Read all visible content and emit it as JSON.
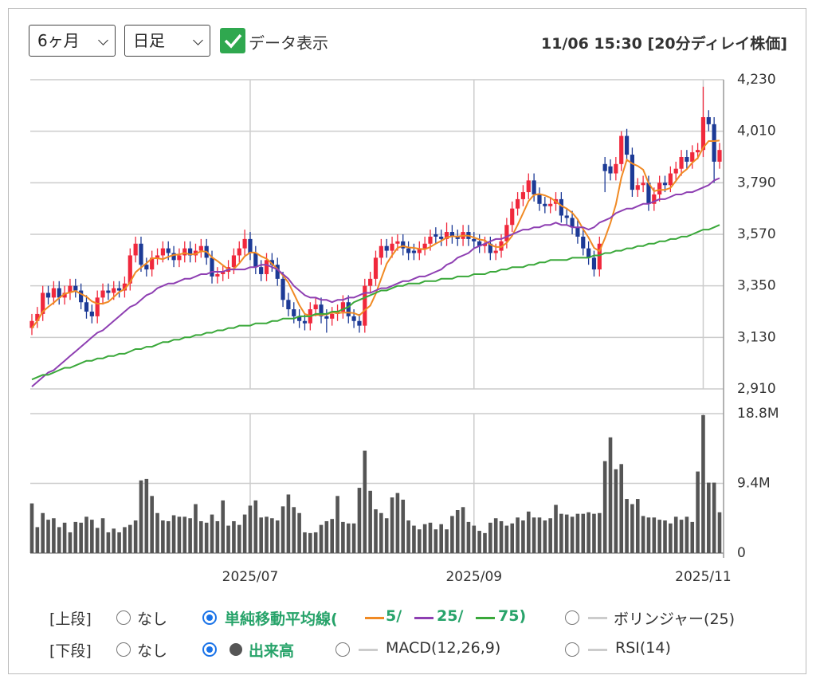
{
  "header": {
    "period": "6ヶ月",
    "interval": "日足",
    "show_data": {
      "label": "データ表示",
      "checked": true
    },
    "timestamp": "11/06 15:30 [20分ディレイ株価]"
  },
  "controls": {
    "upper": {
      "label": "[上段]",
      "options": [
        {
          "label": "なし",
          "selected": false
        },
        {
          "label": "単純移動平均線(",
          "parts": [
            "5/",
            "25/",
            "75)"
          ],
          "selected": true
        },
        {
          "label": "ボリンジャー(25)",
          "selected": false
        }
      ]
    },
    "lower": {
      "label": "[下段]",
      "options": [
        {
          "label": "なし",
          "selected": false
        },
        {
          "label": "出来高",
          "selected": true
        },
        {
          "label": "MACD(12,26,9)",
          "selected": false
        },
        {
          "label": "RSI(14)",
          "selected": false
        }
      ]
    }
  },
  "chart_data": [
    {
      "type": "candlestick",
      "up_color": "#f0283c",
      "down_color": "#1c3a96",
      "grid": true,
      "ylim": [
        2910,
        4230
      ],
      "yticks": [
        {
          "value": 2910,
          "label": "2,910"
        },
        {
          "value": 3130,
          "label": "3,130"
        },
        {
          "value": 3350,
          "label": "3,350"
        },
        {
          "value": 3570,
          "label": "3,570"
        },
        {
          "value": 3790,
          "label": "3,790"
        },
        {
          "value": 4010,
          "label": "4,010"
        },
        {
          "value": 4230,
          "label": "4,230"
        }
      ],
      "open": [
        3170,
        3200,
        3230,
        3320,
        3300,
        3340,
        3300,
        3320,
        3350,
        3330,
        3280,
        3240,
        3220,
        3300,
        3330,
        3320,
        3340,
        3330,
        3360,
        3480,
        3530,
        3440,
        3420,
        3470,
        3480,
        3510,
        3490,
        3460,
        3480,
        3510,
        3480,
        3500,
        3520,
        3470,
        3390,
        3400,
        3410,
        3430,
        3480,
        3510,
        3550,
        3490,
        3430,
        3400,
        3460,
        3440,
        3380,
        3290,
        3250,
        3220,
        3200,
        3190,
        3250,
        3270,
        3220,
        3210,
        3230,
        3240,
        3280,
        3220,
        3200,
        3180,
        3350,
        3380,
        3470,
        3520,
        3500,
        3530,
        3540,
        3510,
        3500,
        3490,
        3510,
        3530,
        3570,
        3560,
        3550,
        3580,
        3560,
        3550,
        3580,
        3550,
        3540,
        3520,
        3530,
        3490,
        3500,
        3540,
        3610,
        3680,
        3720,
        3750,
        3800,
        3740,
        3700,
        3690,
        3700,
        3720,
        3650,
        3640,
        3600,
        3560,
        3510,
        3470,
        3420,
        3870,
        3860,
        3830,
        3870,
        3990,
        3910,
        3760,
        3780,
        3790,
        3700,
        3740,
        3790,
        3780,
        3830,
        3850,
        3900,
        3880,
        3920,
        3930,
        4070,
        4040,
        3880
      ],
      "high": [
        3230,
        3260,
        3350,
        3350,
        3370,
        3370,
        3350,
        3380,
        3380,
        3360,
        3310,
        3270,
        3330,
        3360,
        3360,
        3370,
        3370,
        3390,
        3510,
        3560,
        3560,
        3470,
        3500,
        3510,
        3540,
        3540,
        3520,
        3510,
        3540,
        3540,
        3530,
        3550,
        3550,
        3500,
        3430,
        3440,
        3460,
        3510,
        3540,
        3590,
        3580,
        3520,
        3460,
        3490,
        3490,
        3470,
        3410,
        3320,
        3280,
        3250,
        3230,
        3280,
        3300,
        3300,
        3250,
        3260,
        3270,
        3310,
        3310,
        3250,
        3230,
        3380,
        3410,
        3500,
        3550,
        3550,
        3560,
        3570,
        3570,
        3540,
        3530,
        3540,
        3560,
        3590,
        3600,
        3590,
        3620,
        3610,
        3590,
        3610,
        3610,
        3580,
        3570,
        3560,
        3560,
        3530,
        3570,
        3640,
        3710,
        3750,
        3780,
        3830,
        3830,
        3770,
        3730,
        3730,
        3750,
        3750,
        3680,
        3670,
        3630,
        3590,
        3540,
        3500,
        3560,
        3900,
        3890,
        3900,
        4010,
        4020,
        3940,
        3810,
        3820,
        3820,
        3770,
        3820,
        3820,
        3860,
        3880,
        3930,
        3930,
        3950,
        3960,
        4200,
        4100,
        4070,
        3960
      ],
      "low": [
        3140,
        3170,
        3200,
        3270,
        3270,
        3270,
        3270,
        3290,
        3300,
        3250,
        3210,
        3190,
        3190,
        3270,
        3290,
        3290,
        3300,
        3300,
        3330,
        3450,
        3410,
        3390,
        3390,
        3440,
        3450,
        3460,
        3430,
        3430,
        3450,
        3450,
        3450,
        3470,
        3440,
        3360,
        3360,
        3370,
        3380,
        3400,
        3450,
        3480,
        3460,
        3400,
        3370,
        3370,
        3410,
        3350,
        3260,
        3220,
        3190,
        3170,
        3160,
        3160,
        3220,
        3190,
        3150,
        3180,
        3200,
        3210,
        3190,
        3170,
        3150,
        3150,
        3320,
        3350,
        3440,
        3470,
        3470,
        3500,
        3480,
        3460,
        3460,
        3460,
        3480,
        3500,
        3530,
        3520,
        3520,
        3530,
        3520,
        3520,
        3520,
        3510,
        3490,
        3490,
        3460,
        3460,
        3470,
        3510,
        3580,
        3650,
        3690,
        3720,
        3710,
        3670,
        3660,
        3660,
        3670,
        3620,
        3610,
        3570,
        3530,
        3480,
        3440,
        3390,
        3390,
        3750,
        3800,
        3800,
        3840,
        3880,
        3730,
        3730,
        3750,
        3670,
        3670,
        3710,
        3750,
        3750,
        3800,
        3820,
        3850,
        3850,
        3890,
        3900,
        4010,
        3790,
        3850
      ],
      "close": [
        3200,
        3230,
        3320,
        3300,
        3340,
        3300,
        3320,
        3350,
        3330,
        3280,
        3240,
        3220,
        3300,
        3330,
        3320,
        3340,
        3330,
        3360,
        3480,
        3530,
        3440,
        3420,
        3470,
        3480,
        3510,
        3490,
        3460,
        3480,
        3510,
        3480,
        3500,
        3520,
        3470,
        3390,
        3400,
        3410,
        3430,
        3480,
        3510,
        3550,
        3490,
        3430,
        3400,
        3460,
        3440,
        3380,
        3290,
        3250,
        3220,
        3200,
        3190,
        3250,
        3270,
        3220,
        3210,
        3230,
        3240,
        3280,
        3220,
        3200,
        3180,
        3350,
        3380,
        3470,
        3520,
        3500,
        3530,
        3540,
        3510,
        3490,
        3490,
        3510,
        3530,
        3560,
        3560,
        3550,
        3580,
        3560,
        3550,
        3580,
        3550,
        3540,
        3520,
        3530,
        3490,
        3500,
        3540,
        3610,
        3680,
        3720,
        3750,
        3800,
        3740,
        3700,
        3690,
        3700,
        3720,
        3650,
        3640,
        3600,
        3560,
        3510,
        3470,
        3420,
        3530,
        3840,
        3830,
        3870,
        3990,
        3910,
        3760,
        3780,
        3790,
        3700,
        3740,
        3790,
        3780,
        3830,
        3850,
        3900,
        3880,
        3920,
        3930,
        4070,
        4040,
        3880,
        3930
      ],
      "series": [
        {
          "color": "#f08a24",
          "values": [
            3170,
            3200,
            3240,
            3260,
            3278,
            3298,
            3316,
            3322,
            3328,
            3316,
            3304,
            3284,
            3274,
            3274,
            3282,
            3302,
            3324,
            3336,
            3366,
            3408,
            3428,
            3446,
            3468,
            3468,
            3464,
            3474,
            3482,
            3484,
            3490,
            3484,
            3486,
            3498,
            3496,
            3472,
            3456,
            3438,
            3420,
            3422,
            3446,
            3476,
            3492,
            3492,
            3476,
            3466,
            3444,
            3422,
            3394,
            3364,
            3316,
            3268,
            3230,
            3222,
            3226,
            3226,
            3228,
            3236,
            3234,
            3236,
            3236,
            3234,
            3224,
            3246,
            3266,
            3316,
            3380,
            3444,
            3480,
            3512,
            3520,
            3514,
            3512,
            3508,
            3506,
            3516,
            3530,
            3542,
            3556,
            3562,
            3560,
            3564,
            3564,
            3556,
            3548,
            3544,
            3526,
            3516,
            3516,
            3534,
            3564,
            3610,
            3660,
            3712,
            3738,
            3742,
            3736,
            3726,
            3710,
            3692,
            3680,
            3662,
            3634,
            3592,
            3556,
            3512,
            3498,
            3554,
            3618,
            3698,
            3812,
            3888,
            3872,
            3862,
            3846,
            3788,
            3754,
            3760,
            3760,
            3768,
            3798,
            3830,
            3848,
            3876,
            3896,
            3940,
            3968,
            3968,
            3970
          ]
        },
        {
          "color": "#8e3fb2",
          "values": [
            2920,
            2940,
            2960,
            2980,
            2990,
            3010,
            3030,
            3050,
            3070,
            3090,
            3110,
            3130,
            3150,
            3160,
            3180,
            3200,
            3220,
            3240,
            3260,
            3270,
            3290,
            3310,
            3320,
            3340,
            3350,
            3360,
            3360,
            3370,
            3380,
            3380,
            3390,
            3400,
            3400,
            3410,
            3410,
            3410,
            3420,
            3420,
            3420,
            3420,
            3430,
            3430,
            3440,
            3440,
            3430,
            3420,
            3400,
            3380,
            3350,
            3330,
            3310,
            3300,
            3300,
            3290,
            3290,
            3280,
            3290,
            3290,
            3300,
            3300,
            3310,
            3320,
            3320,
            3330,
            3340,
            3340,
            3350,
            3360,
            3370,
            3370,
            3380,
            3390,
            3390,
            3400,
            3410,
            3420,
            3440,
            3450,
            3470,
            3480,
            3490,
            3510,
            3520,
            3530,
            3540,
            3550,
            3550,
            3560,
            3570,
            3580,
            3590,
            3590,
            3600,
            3600,
            3610,
            3610,
            3620,
            3610,
            3610,
            3600,
            3600,
            3600,
            3590,
            3600,
            3620,
            3630,
            3640,
            3660,
            3670,
            3680,
            3680,
            3690,
            3700,
            3700,
            3710,
            3720,
            3720,
            3730,
            3740,
            3740,
            3750,
            3750,
            3760,
            3770,
            3780,
            3800,
            3810
          ]
        },
        {
          "color": "#3aa83a",
          "values": [
            2950,
            2960,
            2970,
            2970,
            2980,
            2990,
            3000,
            3000,
            3010,
            3020,
            3030,
            3030,
            3040,
            3040,
            3050,
            3050,
            3060,
            3060,
            3070,
            3080,
            3080,
            3090,
            3090,
            3100,
            3110,
            3110,
            3120,
            3120,
            3130,
            3130,
            3140,
            3140,
            3150,
            3150,
            3160,
            3160,
            3170,
            3170,
            3180,
            3180,
            3180,
            3190,
            3190,
            3190,
            3200,
            3200,
            3210,
            3210,
            3210,
            3220,
            3220,
            3220,
            3230,
            3230,
            3230,
            3240,
            3240,
            3250,
            3260,
            3280,
            3290,
            3300,
            3310,
            3320,
            3330,
            3330,
            3340,
            3350,
            3350,
            3360,
            3360,
            3360,
            3370,
            3370,
            3370,
            3380,
            3380,
            3380,
            3390,
            3390,
            3390,
            3400,
            3400,
            3400,
            3410,
            3410,
            3420,
            3420,
            3430,
            3430,
            3430,
            3440,
            3440,
            3450,
            3450,
            3460,
            3460,
            3460,
            3460,
            3470,
            3470,
            3470,
            3470,
            3480,
            3480,
            3490,
            3490,
            3500,
            3500,
            3510,
            3510,
            3520,
            3520,
            3530,
            3530,
            3540,
            3540,
            3550,
            3550,
            3560,
            3560,
            3570,
            3580,
            3590,
            3590,
            3600,
            3610
          ]
        }
      ]
    },
    {
      "type": "bar",
      "color": "#555555",
      "grid": true,
      "xlim": [
        0,
        126
      ],
      "xticks": [
        {
          "value": 40,
          "label": "2025/07"
        },
        {
          "value": 81,
          "label": "2025/09"
        },
        {
          "value": 123,
          "label": "2025/11"
        }
      ],
      "ylim": [
        0,
        18800000
      ],
      "yticks": [
        0,
        {
          "value": 9400000,
          "label": "9.4M"
        },
        {
          "value": 18800000,
          "label": "18.8M"
        }
      ],
      "values": [
        6700000,
        3500000,
        5400000,
        4500000,
        4700000,
        3500000,
        4100000,
        2800000,
        4200000,
        4100000,
        4900000,
        4500000,
        3400000,
        4700000,
        2800000,
        3300000,
        2800000,
        3500000,
        3800000,
        4400000,
        9800000,
        10000000,
        7700000,
        5400000,
        4400000,
        4300000,
        5100000,
        4900000,
        4900000,
        4700000,
        6600000,
        4300000,
        4100000,
        5200000,
        4300000,
        7100000,
        3700000,
        4300000,
        3800000,
        5200000,
        6400000,
        7100000,
        4800000,
        4900000,
        4700000,
        4400000,
        6300000,
        7900000,
        6200000,
        5400000,
        2800000,
        2700000,
        2800000,
        3800000,
        4300000,
        4600000,
        7700000,
        4200000,
        4000000,
        4000000,
        8800000,
        13800000,
        8400000,
        5900000,
        5400000,
        4700000,
        7500000,
        8100000,
        7200000,
        4400000,
        3700000,
        3200000,
        3900000,
        4100000,
        3200000,
        3900000,
        3200000,
        5000000,
        5800000,
        6200000,
        4200000,
        3700000,
        3000000,
        2700000,
        4100000,
        4700000,
        4300000,
        3700000,
        4000000,
        4800000,
        4400000,
        5600000,
        4800000,
        4800000,
        4400000,
        4700000,
        6500000,
        5300000,
        5200000,
        4900000,
        5300000,
        5300000,
        5500000,
        5300000,
        5400000,
        12400000,
        15600000,
        11300000,
        12000000,
        7300000,
        6600000,
        7300000,
        5000000,
        4800000,
        4800000,
        4500000,
        4400000,
        4000000,
        4900000,
        4500000,
        4900000,
        4200000,
        11000000,
        18600000,
        9500000,
        9500000,
        5500000
      ]
    }
  ]
}
